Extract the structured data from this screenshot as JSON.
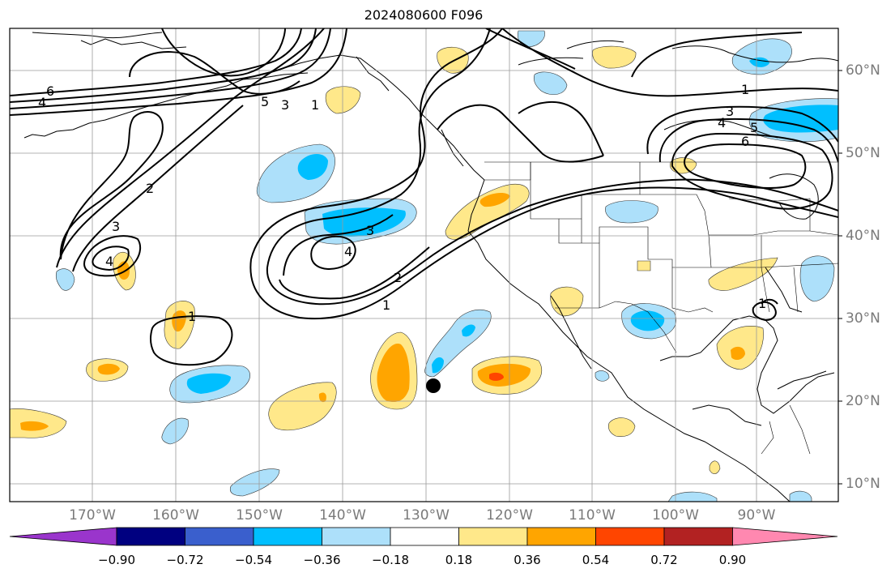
{
  "title": "2024080600 F096",
  "map": {
    "longitude_labels": [
      "170°W",
      "160°W",
      "150°W",
      "140°W",
      "130°W",
      "120°W",
      "110°W",
      "100°W",
      "90°W"
    ],
    "latitude_labels": [
      "60°N",
      "50°N",
      "40°N",
      "30°N",
      "20°N",
      "10°N"
    ],
    "contour_labels": [
      "6",
      "4",
      "5",
      "3",
      "1",
      "2",
      "3",
      "4",
      "3",
      "4",
      "1",
      "2",
      "1",
      "3",
      "1",
      "4",
      "5",
      "6",
      "1"
    ],
    "marker": "storm-center-dot"
  },
  "colorbar": {
    "tick_labels": [
      "−0.90",
      "−0.72",
      "−0.54",
      "−0.36",
      "−0.18",
      "0.18",
      "0.36",
      "0.54",
      "0.72",
      "0.90"
    ],
    "colors": [
      "#9a35cc",
      "#000080",
      "#3a5fcd",
      "#00bfff",
      "#ade0fa",
      "#ffffff",
      "#ffe88a",
      "#ffa500",
      "#ff4500",
      "#b22222",
      "#ff88b0"
    ]
  },
  "colors": {
    "neg_strong": "#00bfff",
    "neg_weak": "#ade0fa",
    "pos_weak": "#ffe88a",
    "pos_mid": "#ffa500",
    "pos_strong": "#ff4500"
  }
}
